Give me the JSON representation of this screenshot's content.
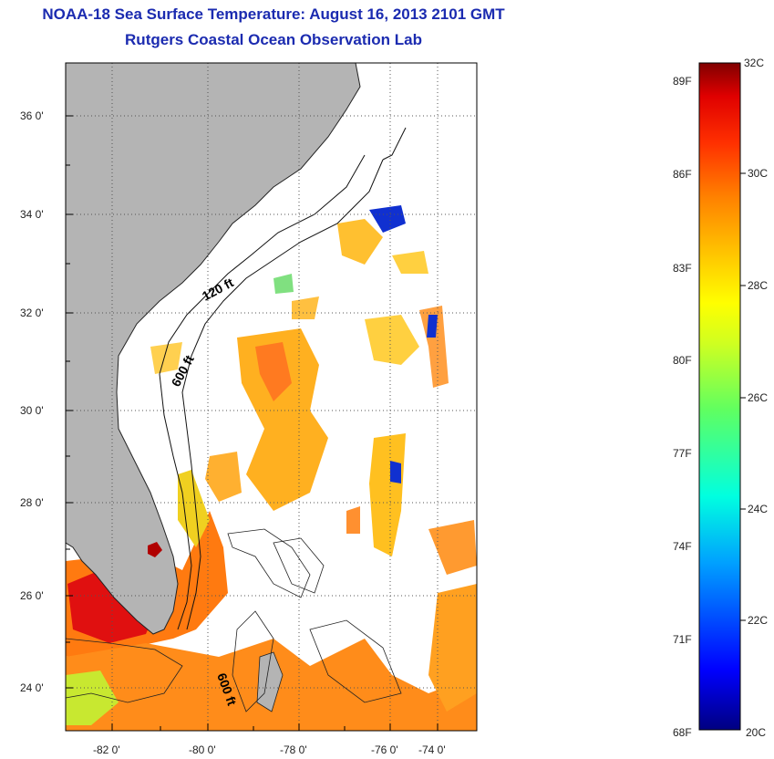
{
  "title": {
    "line1": "NOAA-18 Sea Surface Temperature:  August 16, 2013 2101 GMT",
    "line2": "Rutgers Coastal Ocean Observation Lab"
  },
  "map": {
    "lat_labels": [
      "36 0'",
      "34 0'",
      "32 0'",
      "30 0'",
      "28 0'",
      "26 0'",
      "24 0'"
    ],
    "lon_labels": [
      "-82 0'",
      "-80 0'",
      "-78 0'",
      "-76 0'",
      "-74 0'"
    ],
    "contour_labels": [
      "120 ft",
      "600 ft",
      "600 ft"
    ],
    "colors": {
      "land": "#b4b4b4",
      "ocean_nodata": "#ffffff",
      "grid": "#555555"
    }
  },
  "colorbar": {
    "fahrenheit_labels": [
      "89F",
      "86F",
      "83F",
      "80F",
      "77F",
      "74F",
      "71F",
      "68F"
    ],
    "celsius_labels": [
      "32C",
      "30C",
      "28C",
      "26C",
      "24C",
      "22C",
      "20C"
    ],
    "range_c": [
      20,
      32
    ],
    "colors": [
      "#000080",
      "#0000ff",
      "#00a0ff",
      "#00ffe0",
      "#60ff60",
      "#d0ff20",
      "#ffff00",
      "#ffc000",
      "#ff8000",
      "#ff3000",
      "#e00000",
      "#800000"
    ]
  }
}
